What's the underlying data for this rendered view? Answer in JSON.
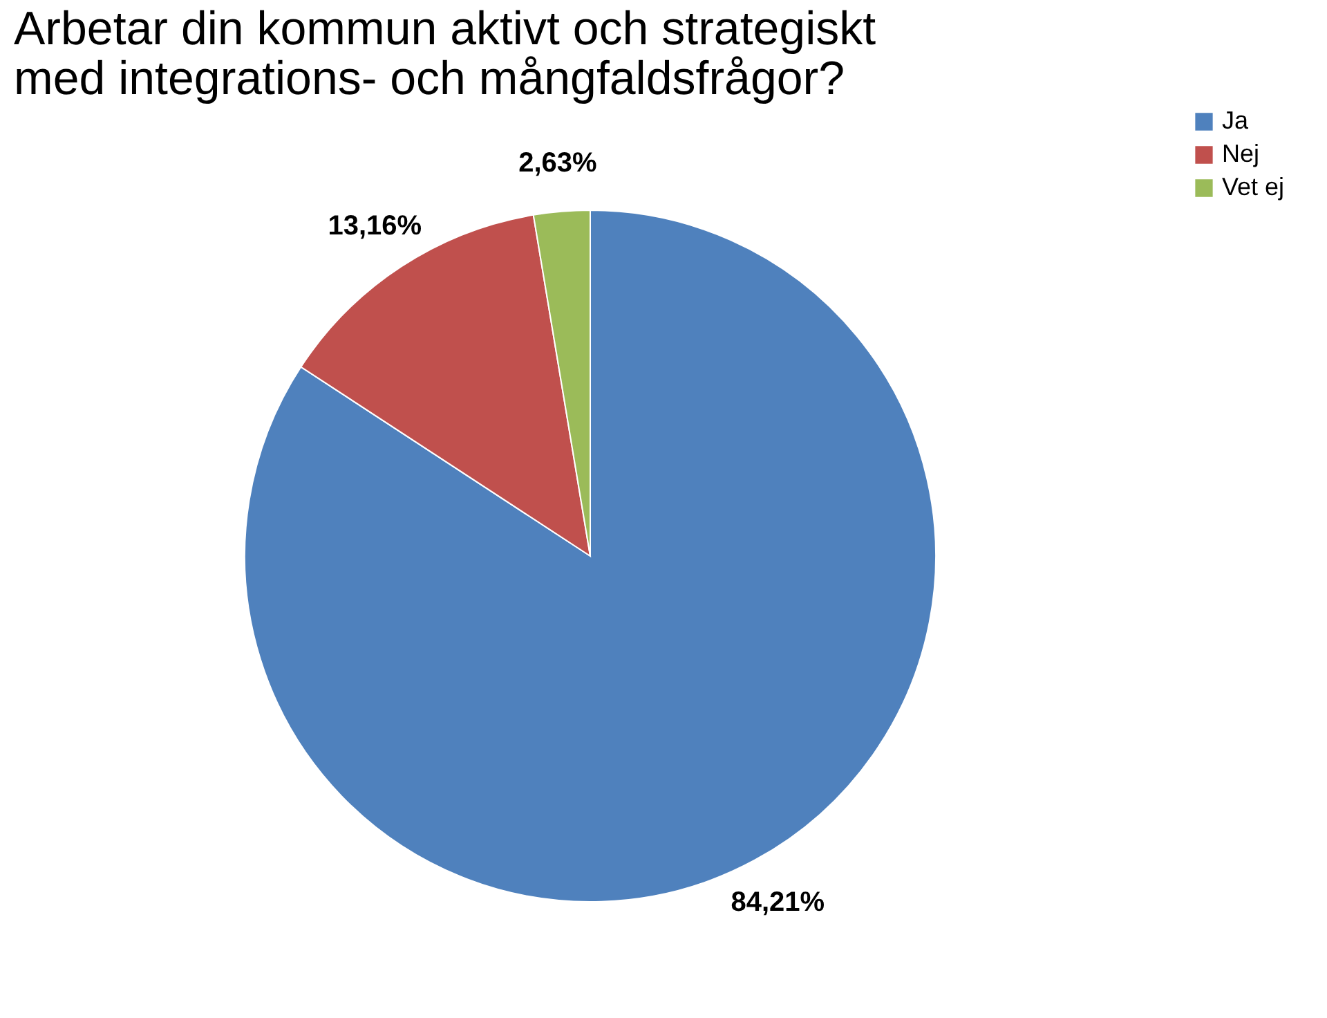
{
  "chart_data": {
    "type": "pie",
    "title": "Arbetar din kommun aktivt och strategiskt\nmed integrations- och mångfaldsfrågor?",
    "categories": [
      "Ja",
      "Nej",
      "Vet ej"
    ],
    "values": [
      84.21,
      13.16,
      2.63
    ],
    "colors": [
      "#4f81bd",
      "#c0504d",
      "#9bbb59"
    ],
    "value_labels": [
      "84,21%",
      "13,16%",
      "2,63%"
    ],
    "legend": "right"
  }
}
